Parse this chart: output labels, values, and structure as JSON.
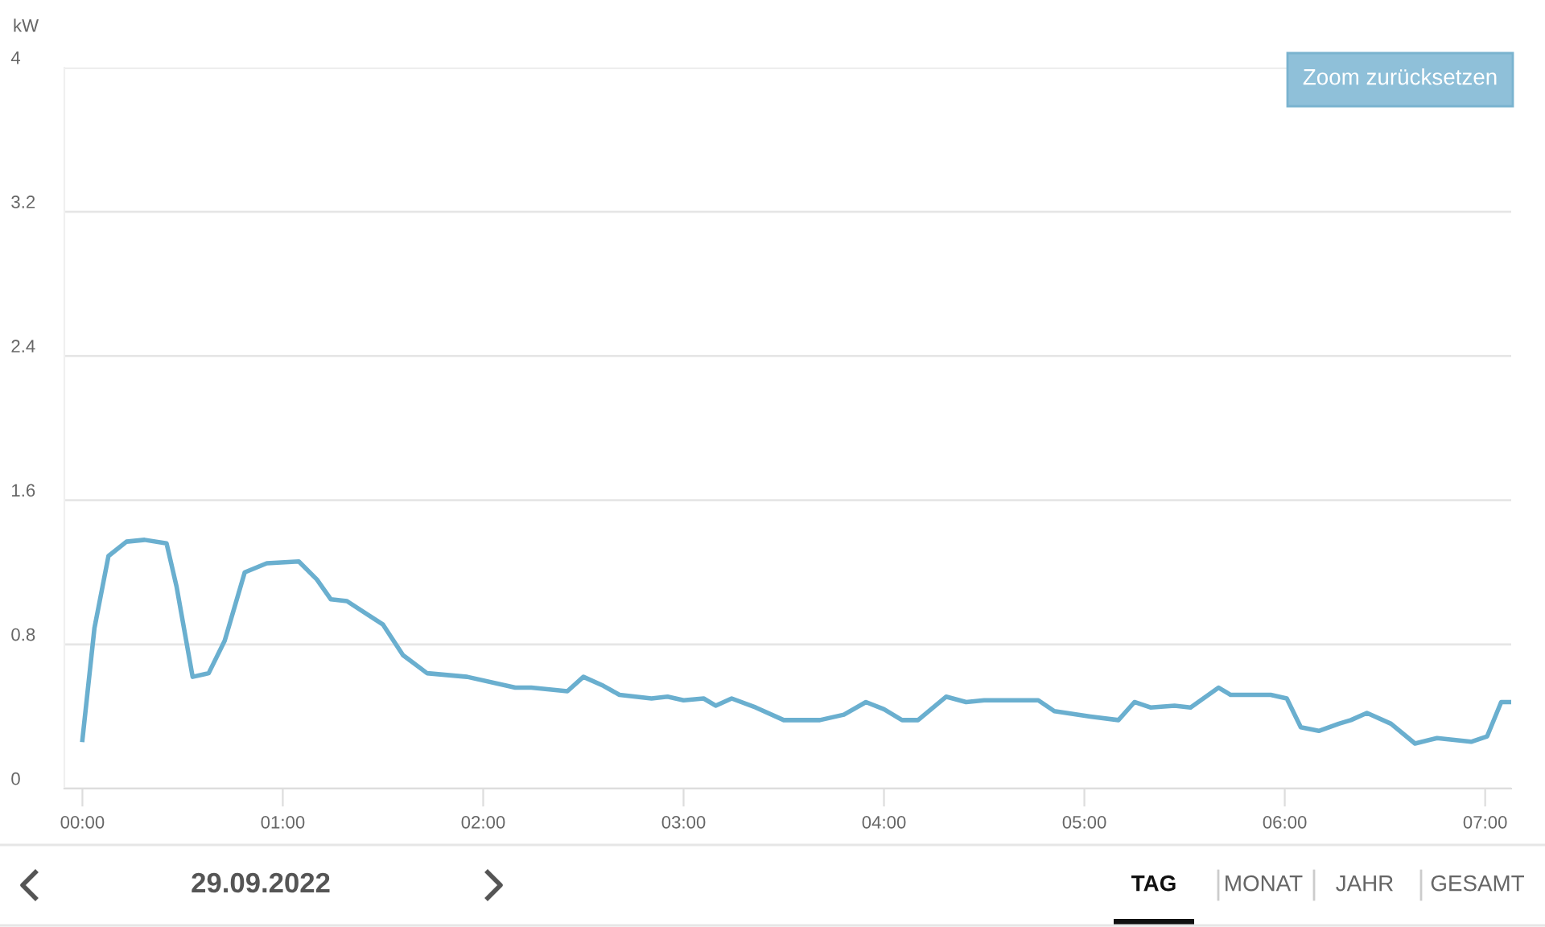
{
  "chart_data": {
    "type": "line",
    "ylabel": "kW",
    "x": [
      0,
      0.06,
      0.13,
      0.22,
      0.31,
      0.42,
      0.47,
      0.55,
      0.63,
      0.71,
      0.81,
      0.92,
      1.08,
      1.17,
      1.24,
      1.32,
      1.5,
      1.6,
      1.72,
      1.92,
      2.16,
      2.24,
      2.42,
      2.5,
      2.6,
      2.68,
      2.84,
      2.92,
      3.0,
      3.1,
      3.16,
      3.24,
      3.36,
      3.5,
      3.68,
      3.8,
      3.91,
      4.0,
      4.09,
      4.17,
      4.31,
      4.41,
      4.5,
      4.61,
      4.77,
      4.85,
      5.03,
      5.17,
      5.25,
      5.33,
      5.45,
      5.53,
      5.67,
      5.73,
      5.93,
      6.01,
      6.08,
      6.17,
      6.27,
      6.33,
      6.41,
      6.53,
      6.65,
      6.76,
      6.93,
      7.01,
      7.08,
      7.12
    ],
    "series": [
      {
        "color": "#6aafcf",
        "values": [
          0.27,
          0.89,
          1.29,
          1.37,
          1.38,
          1.36,
          1.12,
          0.62,
          0.64,
          0.82,
          1.2,
          1.25,
          1.26,
          1.16,
          1.05,
          1.04,
          0.91,
          0.74,
          0.64,
          0.62,
          0.56,
          0.56,
          0.54,
          0.62,
          0.57,
          0.52,
          0.5,
          0.51,
          0.49,
          0.5,
          0.46,
          0.5,
          0.45,
          0.38,
          0.38,
          0.41,
          0.48,
          0.44,
          0.38,
          0.38,
          0.51,
          0.48,
          0.49,
          0.49,
          0.49,
          0.43,
          0.4,
          0.38,
          0.48,
          0.45,
          0.46,
          0.45,
          0.56,
          0.52,
          0.52,
          0.5,
          0.34,
          0.32,
          0.36,
          0.38,
          0.42,
          0.36,
          0.25,
          0.28,
          0.26,
          0.29,
          0.48,
          0.48
        ]
      }
    ],
    "xlim": [
      -0.09,
      7.13
    ],
    "xticks": [
      {
        "value": 0,
        "label": "00:00"
      },
      {
        "value": 1,
        "label": "01:00"
      },
      {
        "value": 2,
        "label": "02:00"
      },
      {
        "value": 3,
        "label": "03:00"
      },
      {
        "value": 4,
        "label": "04:00"
      },
      {
        "value": 5,
        "label": "05:00"
      },
      {
        "value": 6,
        "label": "06:00"
      },
      {
        "value": 7,
        "label": "07:00"
      }
    ],
    "ylim": [
      0,
      4
    ],
    "yticks": [
      0,
      0.8,
      1.6,
      2.4,
      3.2,
      4
    ],
    "grid": "y",
    "marker": "none",
    "line_style": "solid",
    "annotations": [
      "Zoom zurücksetzen",
      "29.09.2022",
      "TAG",
      "MONAT",
      "JAHR",
      "GESAMT"
    ]
  }
}
